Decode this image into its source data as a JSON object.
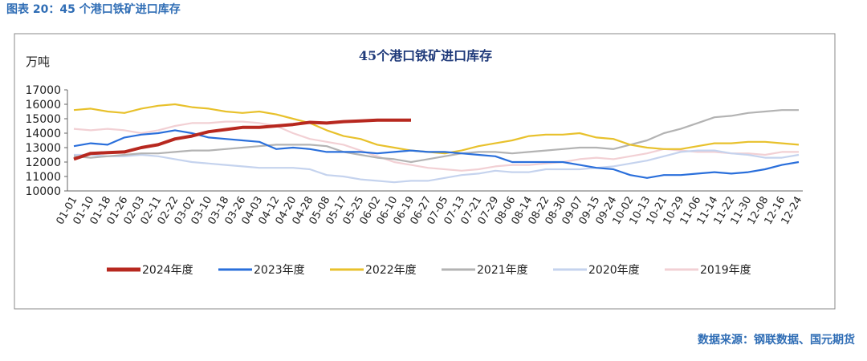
{
  "caption": "图表 20：45 个港口铁矿进口库存",
  "source": "数据来源：钢联数据、国元期货",
  "chart_data": {
    "type": "line",
    "title": "45个港口铁矿进口库存",
    "y_label": "万吨",
    "categories": [
      "01-01",
      "01-10",
      "01-18",
      "01-26",
      "02-03",
      "02-11",
      "02-22",
      "03-02",
      "03-10",
      "03-18",
      "03-26",
      "04-03",
      "04-12",
      "04-20",
      "04-28",
      "05-08",
      "05-17",
      "05-25",
      "06-02",
      "06-10",
      "06-19",
      "06-27",
      "07-05",
      "07-13",
      "07-21",
      "07-29",
      "08-06",
      "08-14",
      "08-22",
      "08-30",
      "09-07",
      "09-15",
      "09-24",
      "10-02",
      "10-13",
      "10-21",
      "10-29",
      "11-06",
      "11-14",
      "11-22",
      "11-30",
      "12-08",
      "12-16",
      "12-24"
    ],
    "ylim": [
      10000,
      17000
    ],
    "yticks": [
      10000,
      11000,
      12000,
      13000,
      14000,
      15000,
      16000,
      17000
    ],
    "legend": "bottom",
    "series": [
      {
        "name": "2024年度",
        "color": "#b7281f",
        "values": [
          12200,
          12600,
          12650,
          12700,
          13000,
          13200,
          13600,
          13800,
          14100,
          14250,
          14400,
          14400,
          14500,
          14600,
          14750,
          14700,
          14800,
          14850,
          14900,
          14900,
          14900,
          null,
          null,
          null,
          null,
          null,
          null,
          null,
          null,
          null,
          null,
          null,
          null,
          null,
          null,
          null,
          null,
          null,
          null,
          null,
          null,
          null,
          null,
          null
        ]
      },
      {
        "name": "2023年度",
        "color": "#2a6fdb",
        "values": [
          13100,
          13300,
          13200,
          13700,
          13900,
          14000,
          14200,
          14000,
          13700,
          13600,
          13500,
          13400,
          12900,
          13000,
          12900,
          12700,
          12700,
          12700,
          12600,
          12700,
          12800,
          12700,
          12700,
          12600,
          12500,
          12400,
          12000,
          12000,
          12000,
          12000,
          11800,
          11600,
          11500,
          11100,
          10900,
          11100,
          11100,
          11200,
          11300,
          11200,
          11300,
          11500,
          11800,
          12000
        ]
      },
      {
        "name": "2022年度",
        "color": "#e8c12c",
        "values": [
          15600,
          15700,
          15500,
          15400,
          15700,
          15900,
          16000,
          15800,
          15700,
          15500,
          15400,
          15500,
          15300,
          15000,
          14700,
          14200,
          13800,
          13600,
          13200,
          13000,
          12800,
          12700,
          12600,
          12800,
          13100,
          13300,
          13500,
          13800,
          13900,
          13900,
          14000,
          13700,
          13600,
          13200,
          13000,
          12900,
          12900,
          13100,
          13300,
          13300,
          13400,
          13400,
          13300,
          13200
        ]
      },
      {
        "name": "2021年度",
        "color": "#b3b3b3",
        "values": [
          12400,
          12300,
          12400,
          12500,
          12600,
          12600,
          12700,
          12800,
          12800,
          12900,
          13000,
          13100,
          13200,
          13200,
          13200,
          13100,
          12700,
          12500,
          12300,
          12200,
          12000,
          12200,
          12400,
          12600,
          12700,
          12700,
          12600,
          12700,
          12800,
          12900,
          13000,
          13000,
          12900,
          13200,
          13500,
          14000,
          14300,
          14700,
          15100,
          15200,
          15400,
          15500,
          15600,
          15600
        ]
      },
      {
        "name": "2020年度",
        "color": "#c5d3ee",
        "values": [
          12500,
          12500,
          12400,
          12400,
          12500,
          12400,
          12200,
          12000,
          11900,
          11800,
          11700,
          11600,
          11600,
          11600,
          11500,
          11100,
          11000,
          10800,
          10700,
          10600,
          10700,
          10700,
          10900,
          11100,
          11200,
          11400,
          11300,
          11300,
          11500,
          11500,
          11500,
          11600,
          11700,
          11900,
          12100,
          12400,
          12700,
          12800,
          12800,
          12600,
          12500,
          12300,
          12300,
          12500
        ]
      },
      {
        "name": "2019年度",
        "color": "#f2d0d4",
        "values": [
          14300,
          14200,
          14300,
          14200,
          14000,
          14200,
          14500,
          14700,
          14700,
          14800,
          14800,
          14700,
          14500,
          14000,
          13600,
          13400,
          13200,
          12800,
          12400,
          12000,
          11800,
          11600,
          11500,
          11400,
          11500,
          11700,
          11800,
          11800,
          11900,
          12000,
          12200,
          12300,
          12200,
          12400,
          12600,
          12900,
          12800,
          12700,
          12700,
          12600,
          12600,
          12500,
          12700,
          12700
        ]
      }
    ]
  }
}
